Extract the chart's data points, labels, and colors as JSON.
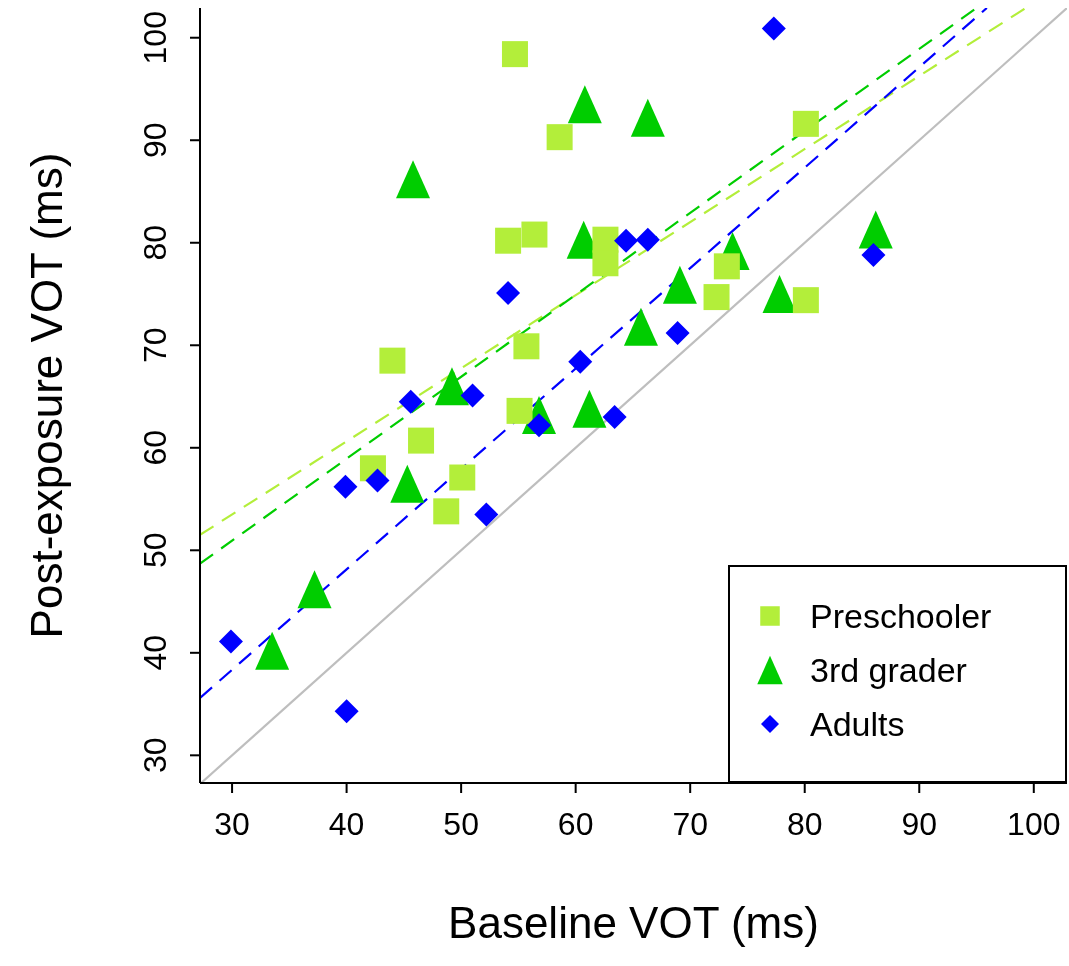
{
  "chart_data": {
    "type": "scatter",
    "xlabel": "Baseline VOT (ms)",
    "ylabel": "Post-exposure VOT (ms)",
    "xlim": [
      27.2,
      102.9
    ],
    "ylim": [
      27.3,
      102.9
    ],
    "xticks": [
      30,
      40,
      50,
      60,
      70,
      80,
      90,
      100
    ],
    "yticks": [
      30,
      40,
      50,
      60,
      70,
      80,
      90,
      100
    ],
    "grid": false,
    "legend": "bottom right",
    "series": [
      {
        "name": "Preschooler",
        "marker": "square",
        "color": "#b3ee3a",
        "x": [
          54.7,
          58.6,
          80.1,
          54.1,
          56.4,
          62.6,
          62.6,
          73.2,
          72.3,
          80.1,
          44.0,
          55.7,
          48.7,
          46.5,
          42.3,
          50.1,
          55.1
        ],
        "values": [
          98.4,
          90.3,
          91.6,
          80.2,
          80.8,
          80.3,
          78.0,
          77.7,
          74.7,
          74.4,
          68.5,
          69.9,
          53.8,
          60.7,
          58.0,
          57.1,
          63.6
        ]
      },
      {
        "name": "3rd grader",
        "marker": "triangle",
        "color": "#00cd00",
        "x": [
          60.8,
          66.3,
          45.8,
          60.7,
          65.7,
          86.2,
          73.7,
          69.1,
          77.8,
          49.2,
          56.8,
          61.2,
          45.3,
          37.2,
          33.5
        ],
        "values": [
          93.5,
          92.2,
          86.2,
          80.3,
          71.8,
          81.3,
          79.2,
          75.9,
          75.0,
          66.0,
          63.2,
          63.8,
          56.5,
          46.2,
          40.2
        ]
      },
      {
        "name": "Adults",
        "marker": "diamond",
        "color": "#0000ff",
        "x": [
          77.3,
          64.4,
          66.3,
          86.0,
          68.9,
          54.1,
          45.6,
          51.0,
          56.8,
          63.4,
          39.9,
          42.7,
          52.2,
          29.9,
          40.0,
          60.4
        ],
        "values": [
          100.9,
          80.2,
          80.3,
          78.8,
          71.2,
          75.1,
          64.5,
          65.1,
          62.2,
          63.0,
          56.2,
          56.8,
          53.5,
          41.1,
          34.3,
          68.4
        ]
      },
      {
        "type": "line",
        "line_style": "dashed",
        "marker": "none",
        "color": "#b3ee3a",
        "x": [
          27.2,
          99.3
        ],
        "values": [
          51.5,
          102.9
        ]
      },
      {
        "type": "line",
        "line_style": "dashed",
        "marker": "none",
        "color": "#00cd00",
        "x": [
          27.2,
          95.0
        ],
        "values": [
          48.7,
          102.9
        ]
      },
      {
        "type": "line",
        "line_style": "dashed",
        "marker": "none",
        "color": "#0000ff",
        "x": [
          27.2,
          95.9
        ],
        "values": [
          35.6,
          102.9
        ]
      },
      {
        "type": "line",
        "line_style": "solid",
        "marker": "none",
        "color": "#bebebe",
        "x": [
          27.3,
          102.9
        ],
        "values": [
          27.3,
          102.9
        ]
      }
    ]
  }
}
